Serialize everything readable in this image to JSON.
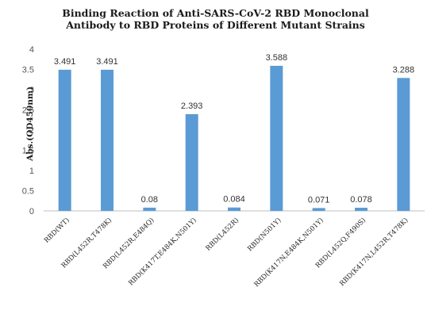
{
  "chart_data": {
    "type": "bar",
    "title_line1": "Binding Reaction of Anti-SARS-CoV-2 RBD Monoclonal",
    "title_line2": "Antibody  to RBD Proteins of Different Mutant Strains",
    "xlabel": "",
    "ylabel": "Abs.(OD450nm)",
    "ylim": [
      0,
      4
    ],
    "yticks": [
      0,
      0.5,
      1,
      1.5,
      2,
      2.5,
      3,
      3.5,
      4
    ],
    "ytick_labels": [
      "0",
      "0.5",
      "1",
      "1.5",
      "2",
      "2.5",
      "3",
      "3.5",
      "4"
    ],
    "grid": false,
    "legend": "none",
    "bar_color": "#5b9bd5",
    "categories": [
      "RBD(WT)",
      "RBD(L452R,T478K)",
      "RBD(L452R,E484Q)",
      "RBD(K417T,E484K,N501Y)",
      "RBD(L452R)",
      "RBD(N501Y)",
      "RBD(K417N,E484K,N501Y)",
      "RBD(L452Q,F490S)",
      "RBD(K417N,L452R,T478K)"
    ],
    "values": [
      3.491,
      3.491,
      0.08,
      2.393,
      0.084,
      3.588,
      0.071,
      0.078,
      3.288
    ],
    "data_labels": [
      "3.491",
      "3.491",
      "0.08",
      "2.393",
      "0.084",
      "3.588",
      "0.071",
      "0.078",
      "3.288"
    ]
  }
}
